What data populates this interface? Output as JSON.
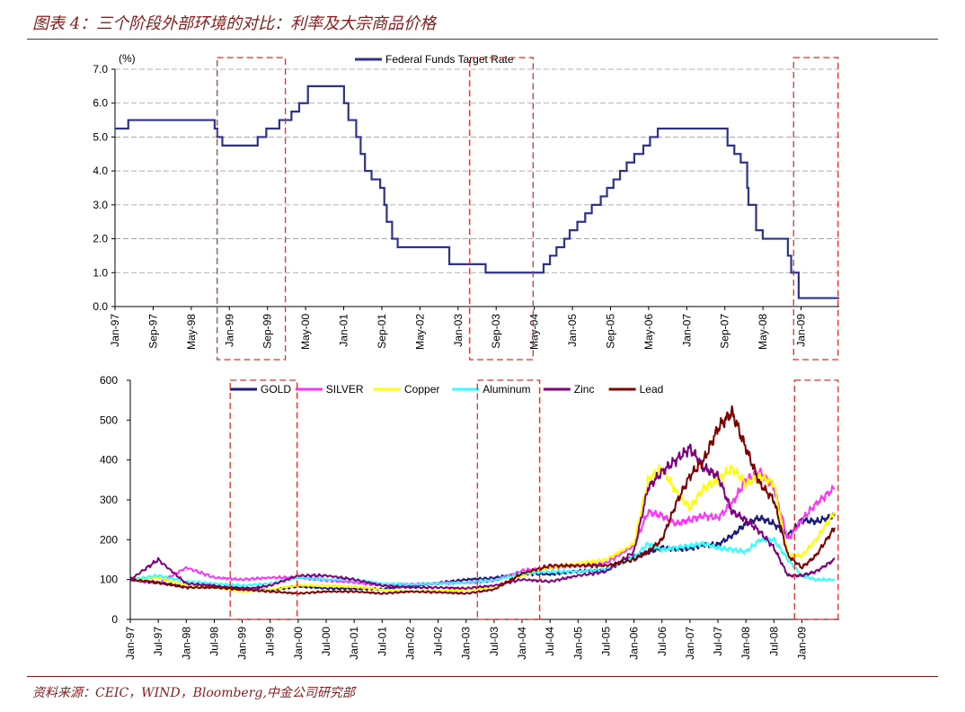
{
  "figure": {
    "title": "图表 4：三个阶段外部环境的对比：利率及大宗商品价格",
    "source": "资料来源：CEIC，WIND，Bloomberg,中金公司研究部"
  },
  "colors": {
    "brand": "#8b1a1a",
    "highlight_box": "#e0302a",
    "fed_rate": "#2e3192",
    "gold": "#1a1a80",
    "silver": "#ff33ff",
    "copper": "#ffff00",
    "aluminum": "#33ffff",
    "zinc": "#800080",
    "lead": "#800000"
  },
  "chart_data": [
    {
      "type": "line",
      "ylabel": "(%)",
      "ylim": [
        0,
        7
      ],
      "yticks": [
        "0.0",
        "1.0",
        "2.0",
        "3.0",
        "4.0",
        "5.0",
        "6.0",
        "7.0"
      ],
      "xticks": [
        "Jan-97",
        "Sep-97",
        "May-98",
        "Jan-99",
        "Sep-99",
        "May-00",
        "Jan-01",
        "Sep-01",
        "May-02",
        "Jan-03",
        "Sep-03",
        "May-04",
        "Jan-05",
        "Sep-05",
        "May-06",
        "Jan-07",
        "Sep-07",
        "May-08",
        "Jan-09"
      ],
      "grid": "horizontal dashed",
      "legend": "top-center",
      "highlight_periods": [
        [
          "1998-11",
          "1999-12"
        ],
        [
          "2003-04",
          "2004-04"
        ],
        [
          "2008-12",
          "2009-08"
        ]
      ],
      "series": [
        {
          "name": "Federal Funds Target Rate",
          "color": "#2e3192",
          "steps": [
            [
              "1997-01-01",
              5.25
            ],
            [
              "1997-03-25",
              5.5
            ],
            [
              "1998-09-29",
              5.25
            ],
            [
              "1998-10-15",
              5.0
            ],
            [
              "1998-11-17",
              4.75
            ],
            [
              "1999-06-30",
              5.0
            ],
            [
              "1999-08-24",
              5.25
            ],
            [
              "1999-11-16",
              5.5
            ],
            [
              "2000-02-02",
              5.75
            ],
            [
              "2000-03-21",
              6.0
            ],
            [
              "2000-05-16",
              6.5
            ],
            [
              "2001-01-03",
              6.0
            ],
            [
              "2001-01-31",
              5.5
            ],
            [
              "2001-03-20",
              5.0
            ],
            [
              "2001-04-18",
              4.5
            ],
            [
              "2001-05-15",
              4.0
            ],
            [
              "2001-06-27",
              3.75
            ],
            [
              "2001-08-21",
              3.5
            ],
            [
              "2001-09-17",
              3.0
            ],
            [
              "2001-10-02",
              2.5
            ],
            [
              "2001-11-06",
              2.0
            ],
            [
              "2001-12-11",
              1.75
            ],
            [
              "2002-11-06",
              1.25
            ],
            [
              "2003-06-25",
              1.0
            ],
            [
              "2004-06-30",
              1.25
            ],
            [
              "2004-08-10",
              1.5
            ],
            [
              "2004-09-21",
              1.75
            ],
            [
              "2004-11-10",
              2.0
            ],
            [
              "2004-12-14",
              2.25
            ],
            [
              "2005-02-02",
              2.5
            ],
            [
              "2005-03-22",
              2.75
            ],
            [
              "2005-05-03",
              3.0
            ],
            [
              "2005-06-30",
              3.25
            ],
            [
              "2005-08-09",
              3.5
            ],
            [
              "2005-09-20",
              3.75
            ],
            [
              "2005-11-01",
              4.0
            ],
            [
              "2005-12-13",
              4.25
            ],
            [
              "2006-01-31",
              4.5
            ],
            [
              "2006-03-28",
              4.75
            ],
            [
              "2006-05-10",
              5.0
            ],
            [
              "2006-06-29",
              5.25
            ],
            [
              "2007-09-18",
              4.75
            ],
            [
              "2007-10-31",
              4.5
            ],
            [
              "2007-12-11",
              4.25
            ],
            [
              "2008-01-22",
              3.5
            ],
            [
              "2008-01-30",
              3.0
            ],
            [
              "2008-03-18",
              2.25
            ],
            [
              "2008-04-30",
              2.0
            ],
            [
              "2008-10-08",
              1.5
            ],
            [
              "2008-10-29",
              1.0
            ],
            [
              "2008-12-16",
              0.25
            ],
            [
              "2009-08-31",
              0.25
            ]
          ]
        }
      ]
    },
    {
      "type": "line",
      "ylim": [
        0,
        600
      ],
      "yticks": [
        "0",
        "100",
        "200",
        "300",
        "400",
        "500",
        "600"
      ],
      "xticks": [
        "Jan-97",
        "Jul-97",
        "Jan-98",
        "Jul-98",
        "Jan-99",
        "Jul-99",
        "Jan-00",
        "Jul-00",
        "Jan-01",
        "Jul-01",
        "Jan-02",
        "Jul-02",
        "Jan-03",
        "Jul-03",
        "Jan-04",
        "Jul-04",
        "Jan-05",
        "Jul-05",
        "Jan-06",
        "Jul-06",
        "Jan-07",
        "Jul-07",
        "Jan-08",
        "Jul-08",
        "Jan-09"
      ],
      "legend": "top-center",
      "highlight_periods": [
        [
          "1998-11",
          "1999-12"
        ],
        [
          "2003-04",
          "2004-04"
        ],
        [
          "2008-12",
          "2009-08"
        ]
      ],
      "categories": [
        "1997-01",
        "1997-07",
        "1998-01",
        "1998-07",
        "1999-01",
        "1999-07",
        "2000-01",
        "2000-07",
        "2001-01",
        "2001-07",
        "2002-01",
        "2002-07",
        "2003-01",
        "2003-07",
        "2004-01",
        "2004-07",
        "2005-01",
        "2005-07",
        "2006-01",
        "2006-04",
        "2006-07",
        "2006-10",
        "2007-01",
        "2007-04",
        "2007-07",
        "2007-10",
        "2008-01",
        "2008-04",
        "2008-07",
        "2008-10",
        "2009-01",
        "2009-04",
        "2009-08"
      ],
      "series": [
        {
          "name": "GOLD",
          "color": "#1a1a80",
          "values": [
            100,
            92,
            83,
            82,
            80,
            73,
            83,
            78,
            77,
            76,
            84,
            91,
            100,
            104,
            115,
            113,
            121,
            124,
            158,
            168,
            180,
            176,
            178,
            187,
            188,
            210,
            240,
            255,
            240,
            210,
            250,
            245,
            260
          ]
        },
        {
          "name": "SILVER",
          "color": "#ff33ff",
          "values": [
            100,
            90,
            130,
            105,
            100,
            105,
            105,
            98,
            93,
            85,
            88,
            91,
            92,
            97,
            122,
            130,
            135,
            142,
            185,
            270,
            260,
            240,
            250,
            260,
            255,
            290,
            350,
            370,
            330,
            200,
            250,
            290,
            330
          ]
        },
        {
          "name": "Copper",
          "color": "#ffff00",
          "values": [
            100,
            105,
            85,
            80,
            70,
            75,
            85,
            85,
            82,
            75,
            70,
            72,
            74,
            80,
            110,
            130,
            140,
            150,
            190,
            350,
            380,
            320,
            280,
            330,
            350,
            380,
            340,
            360,
            340,
            160,
            160,
            200,
            270
          ]
        },
        {
          "name": "Aluminum",
          "color": "#33ffff",
          "values": [
            100,
            110,
            95,
            90,
            85,
            90,
            105,
            100,
            100,
            90,
            88,
            90,
            92,
            98,
            115,
            120,
            120,
            125,
            155,
            190,
            175,
            180,
            185,
            190,
            180,
            175,
            170,
            200,
            200,
            150,
            110,
            100,
            100
          ]
        },
        {
          "name": "Zinc",
          "color": "#800080",
          "values": [
            100,
            150,
            90,
            85,
            75,
            85,
            110,
            110,
            100,
            85,
            80,
            80,
            78,
            85,
            100,
            95,
            110,
            120,
            170,
            330,
            370,
            400,
            430,
            380,
            360,
            270,
            250,
            220,
            180,
            110,
            110,
            120,
            150
          ]
        },
        {
          "name": "Lead",
          "color": "#800000",
          "values": [
            100,
            92,
            80,
            80,
            75,
            70,
            65,
            70,
            70,
            65,
            70,
            68,
            65,
            75,
            115,
            135,
            135,
            135,
            150,
            170,
            200,
            290,
            360,
            400,
            480,
            520,
            430,
            340,
            300,
            160,
            130,
            160,
            230
          ]
        }
      ]
    }
  ]
}
